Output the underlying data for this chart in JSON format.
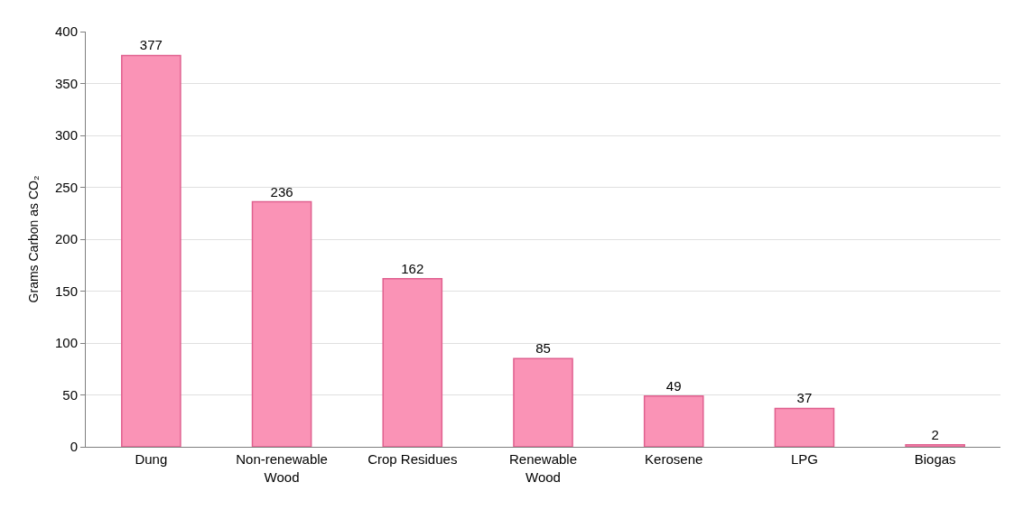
{
  "chart_data": {
    "type": "bar",
    "ylabel": "Grams Carbon as CO₂",
    "categories": [
      "Dung",
      "Non-renewable\nWood",
      "Crop Residues",
      "Renewable\nWood",
      "Kerosene",
      "LPG",
      "Biogas"
    ],
    "values": [
      377,
      236,
      162,
      85,
      49,
      37,
      2
    ],
    "color": "#fa93b6",
    "ylim": [
      0,
      400
    ],
    "yticks": [
      0,
      50,
      100,
      150,
      200,
      250,
      300,
      350,
      400
    ],
    "grid": "y",
    "data_labels": true
  }
}
